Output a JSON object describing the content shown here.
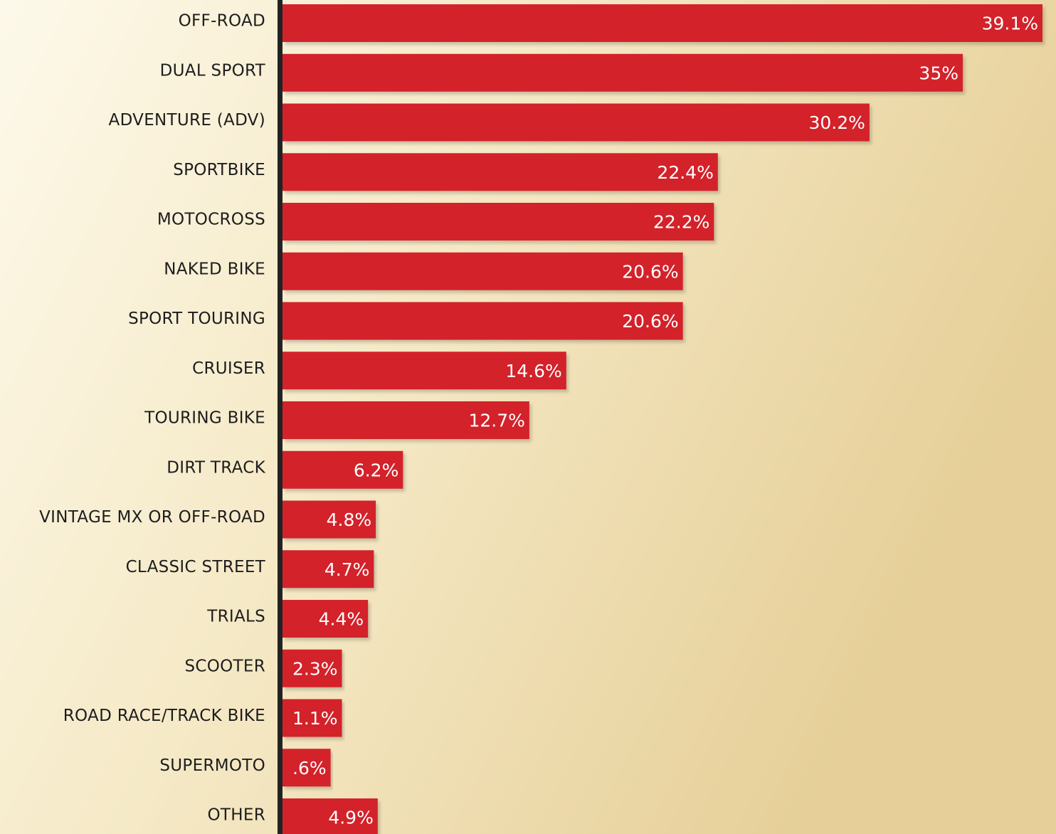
{
  "chart_data": {
    "type": "bar",
    "orientation": "horizontal",
    "categories": [
      "OFF-ROAD",
      "DUAL SPORT",
      "ADVENTURE (ADV)",
      "SPORTBIKE",
      "MOTOCROSS",
      "NAKED BIKE",
      "SPORT TOURING",
      "CRUISER",
      "TOURING BIKE",
      "DIRT TRACK",
      "VINTAGE MX OR OFF-ROAD",
      "CLASSIC STREET",
      "TRIALS",
      "SCOOTER",
      "ROAD RACE/TRACK BIKE",
      "SUPERMOTO",
      "OTHER"
    ],
    "values": [
      39.1,
      35,
      30.2,
      22.4,
      22.2,
      20.6,
      20.6,
      14.6,
      12.7,
      6.2,
      4.8,
      4.7,
      4.4,
      2.3,
      1.1,
      0.6,
      4.9
    ],
    "value_labels": [
      "39.1%",
      "35%",
      "30.2%",
      "22.4%",
      "22.2%",
      "20.6%",
      "20.6%",
      "14.6%",
      "12.7%",
      "6.2%",
      "4.8%",
      "4.7%",
      "4.4%",
      "2.3%",
      "1.1%",
      ".6%",
      "4.9%"
    ],
    "color": "#d3212a"
  }
}
